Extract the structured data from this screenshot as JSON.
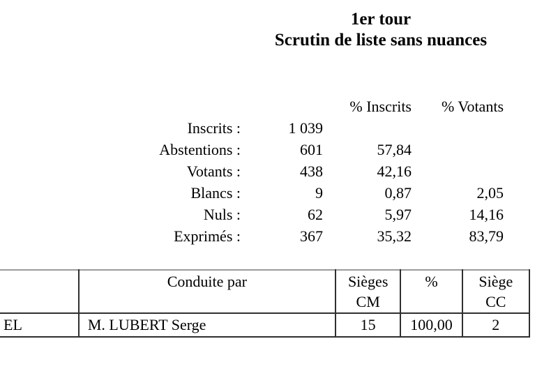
{
  "page": {
    "title_line1": "1er tour",
    "title_line2": "Scrutin de liste sans nuances"
  },
  "stats": {
    "headers": {
      "pct_inscrits": "% Inscrits",
      "pct_votants": "% Votants"
    },
    "rows": [
      {
        "label": "Inscrits :",
        "count": "1 039",
        "pct_inscrits": "",
        "pct_votants": ""
      },
      {
        "label": "Abstentions :",
        "count": "601",
        "pct_inscrits": "57,84",
        "pct_votants": ""
      },
      {
        "label": "Votants :",
        "count": "438",
        "pct_inscrits": "42,16",
        "pct_votants": ""
      },
      {
        "label": "Blancs :",
        "count": "9",
        "pct_inscrits": "0,87",
        "pct_votants": "2,05"
      },
      {
        "label": "Nuls :",
        "count": "62",
        "pct_inscrits": "5,97",
        "pct_votants": "14,16"
      },
      {
        "label": "Exprimés :",
        "count": "367",
        "pct_inscrits": "35,32",
        "pct_votants": "83,79"
      }
    ]
  },
  "results_table": {
    "headers": {
      "list": "",
      "conduite_par": "Conduite par",
      "sieges_cm_line1": "Sièges",
      "sieges_cm_line2": "CM",
      "pct": "%",
      "sieges_cc_line1": "Siège",
      "sieges_cc_line2": "CC"
    },
    "rows": [
      {
        "list_fragment": "EL",
        "conduite_par": "M. LUBERT Serge",
        "sieges_cm": "15",
        "pct": "100,00",
        "sieges_cc": "2"
      }
    ]
  },
  "colors": {
    "text": "#000000",
    "border_dark": "#2f2f2f",
    "border_light": "#9b9b9b",
    "background": "#ffffff"
  }
}
